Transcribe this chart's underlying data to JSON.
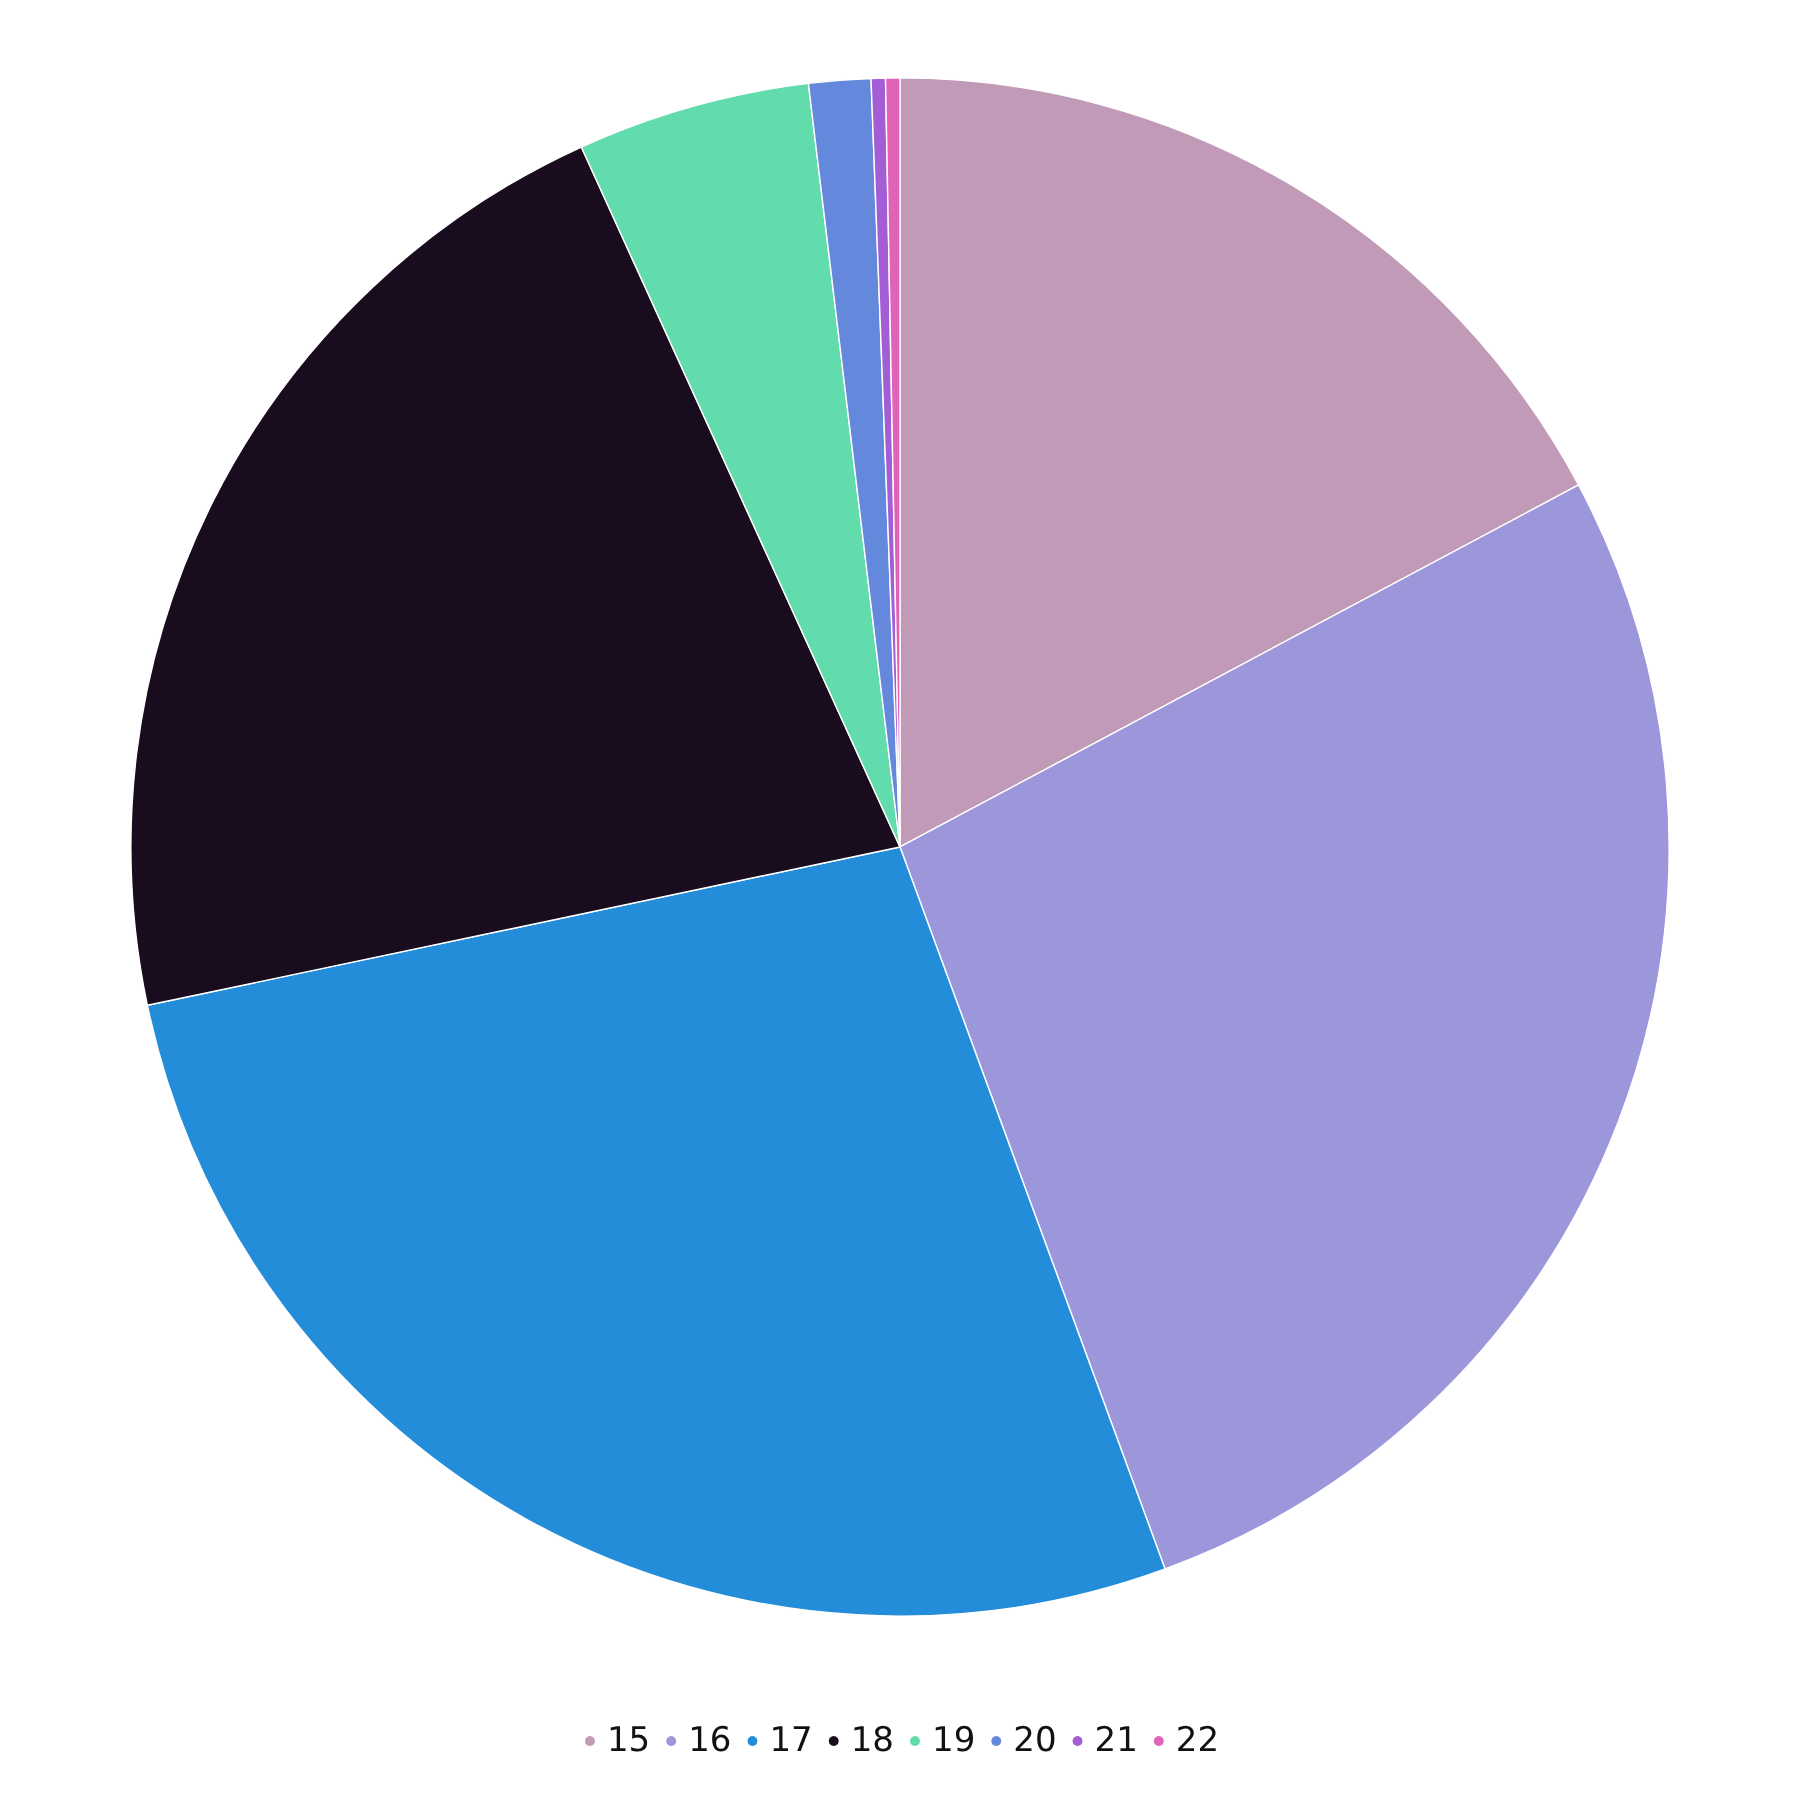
{
  "chart_data": {
    "type": "pie",
    "categories": [
      "15",
      "16",
      "17",
      "18",
      "19",
      "20",
      "21",
      "22"
    ],
    "values": [
      17.2,
      27.2,
      27.3,
      21.5,
      4.9,
      1.3,
      0.3,
      0.3
    ],
    "colors": [
      "#c09ab6",
      "#9c96db",
      "#238dda",
      "#180c1e",
      "#62dbad",
      "#6488dc",
      "#a35ed6",
      "#e063b8"
    ],
    "legend": "bottom"
  }
}
